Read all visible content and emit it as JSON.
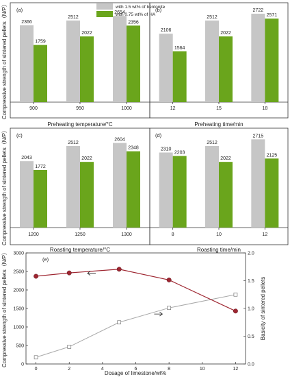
{
  "colors": {
    "bentonite": "#c6c6c6",
    "ha": "#6aa51c",
    "strength_line": "#9e2631",
    "basicity_line": "#a8a8a8"
  },
  "legend": {
    "bentonite": "with 1.5 wt% of bentonite",
    "ha": "with 0.75 wt% of HA"
  },
  "left_ylabel_top": "Compressive strength of sintered pellets（N/P）",
  "left_ylabel_mid": "Compressive strength of sintered pellets（N/P）",
  "chart_data": [
    {
      "type": "bar",
      "panel": "(a)",
      "categories": [
        "900",
        "950",
        "1000"
      ],
      "series": [
        {
          "name": "with 1.5 wt% of bentonite",
          "values": [
            2366,
            2512,
            2654
          ]
        },
        {
          "name": "with 0.75 wt% of HA",
          "values": [
            1759,
            2022,
            2356
          ]
        }
      ],
      "xlabel": "Preheating temperature/°C",
      "ylim": [
        0,
        3000
      ]
    },
    {
      "type": "bar",
      "panel": "(b)",
      "categories": [
        "12",
        "15",
        "18"
      ],
      "series": [
        {
          "name": "with 1.5 wt% of bentonite",
          "values": [
            2106,
            2512,
            2722
          ]
        },
        {
          "name": "with 0.75 wt% of HA",
          "values": [
            1564,
            2022,
            2571
          ]
        }
      ],
      "xlabel": "Preheating time/min",
      "ylim": [
        0,
        3000
      ]
    },
    {
      "type": "bar",
      "panel": "(c)",
      "categories": [
        "1200",
        "1250",
        "1300"
      ],
      "series": [
        {
          "name": "with 1.5 wt% of bentonite",
          "values": [
            2043,
            2512,
            2604
          ]
        },
        {
          "name": "with 0.75 wt% of HA",
          "values": [
            1772,
            2022,
            2348
          ]
        }
      ],
      "xlabel": "Roasting temperature/°C",
      "ylim": [
        0,
        3000
      ]
    },
    {
      "type": "bar",
      "panel": "(d)",
      "categories": [
        "8",
        "10",
        "12"
      ],
      "series": [
        {
          "name": "with 1.5 wt% of bentonite",
          "values": [
            2310,
            2512,
            2715
          ]
        },
        {
          "name": "with 0.75 wt% of HA",
          "values": [
            2203,
            2022,
            2125
          ]
        }
      ],
      "xlabel": "Roasting time/min",
      "ylim": [
        0,
        3000
      ]
    },
    {
      "type": "line",
      "panel": "(e)",
      "x": [
        0,
        2,
        5,
        8,
        12
      ],
      "series": [
        {
          "name": "Compressive strength",
          "axis": "left",
          "values": [
            2370,
            2460,
            2560,
            2270,
            1430
          ]
        },
        {
          "name": "Basicity",
          "axis": "right",
          "values": [
            0.12,
            0.31,
            0.75,
            1.01,
            1.25
          ]
        }
      ],
      "xlabel": "Dosage of limestone/wt%",
      "ylabel": "Compressive strength of sintered pellets（N/P）",
      "y2label": "Basicity of sintered pellets",
      "xlim": [
        -0.6,
        12.6
      ],
      "ylim": [
        0,
        3000
      ],
      "yticks": [
        0,
        500,
        1000,
        1500,
        2000,
        2500,
        3000
      ],
      "y2lim": [
        0,
        2.0
      ],
      "y2ticks": [
        "0.0",
        "0.5",
        "1.0",
        "1.5",
        "2.0"
      ],
      "xticks": [
        0,
        2,
        4,
        6,
        8,
        10,
        12
      ]
    }
  ]
}
